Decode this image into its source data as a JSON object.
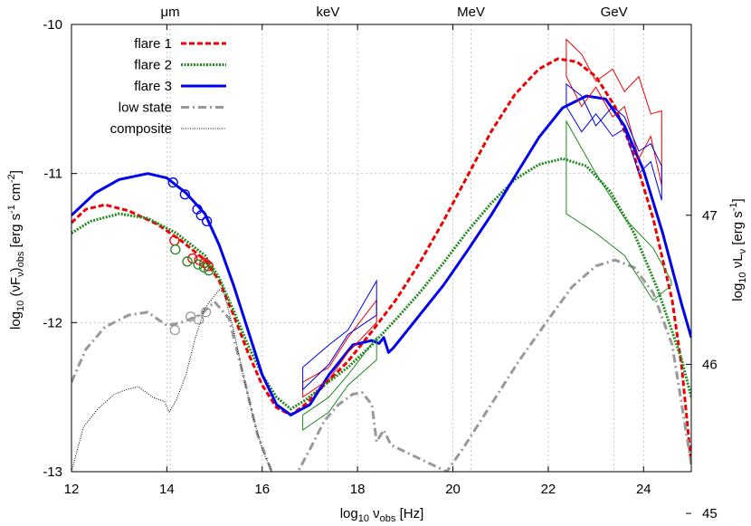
{
  "chart_data": {
    "type": "line",
    "xlabel_main": "log",
    "xlabel_sub": "10",
    "xlabel_nu": " ν",
    "xlabel_nu_sub": "obs",
    "xlabel_unit": " [Hz]",
    "ylabel_left_main": "log",
    "ylabel_left_sub": "10",
    "ylabel_left_mid": " (νF",
    "ylabel_left_sub2": "ν",
    "ylabel_left_mid2": ")",
    "ylabel_left_sub3": "obs",
    "ylabel_left_unit": " [erg s",
    "ylabel_left_sup1": "-1",
    "ylabel_left_unit2": " cm",
    "ylabel_left_sup2": "-2",
    "ylabel_left_end": "]",
    "ylabel_right_main": "log",
    "ylabel_right_sub": "10",
    "ylabel_right_mid": " νL",
    "ylabel_right_sub2": "ν",
    "ylabel_right_unit": " [erg s",
    "ylabel_right_sup": "-1",
    "ylabel_right_end": "]",
    "xlim": [
      12,
      25
    ],
    "ylim": [
      -13,
      -10
    ],
    "y2_offset": 58.28,
    "x_ticks": [
      "12",
      "14",
      "16",
      "18",
      "20",
      "22",
      "24"
    ],
    "x_tick_values": [
      12,
      14,
      16,
      18,
      20,
      22,
      24
    ],
    "y_ticks": [
      "-13",
      "-12",
      "-11",
      "-10"
    ],
    "y_tick_values": [
      -13,
      -12,
      -11,
      -10
    ],
    "y2_ticks": [
      "45",
      "46",
      "47"
    ],
    "y2_tick_values": [
      45,
      46,
      47
    ],
    "grid": true,
    "legend_position": "top-left",
    "bands": [
      {
        "label": "μm",
        "x": 14.07
      },
      {
        "label": "keV",
        "x": 17.38
      },
      {
        "label": "MeV",
        "x": 20.38
      },
      {
        "label": "GeV",
        "x": 23.38
      }
    ],
    "series": [
      {
        "name": "flare 1",
        "color": "#ee0000",
        "style": "dashed",
        "x": [
          12,
          12.3,
          12.7,
          13.2,
          13.8,
          14.3,
          14.8,
          15.1,
          15.4,
          15.7,
          16.0,
          16.3,
          16.6,
          16.9,
          17.3,
          17.8,
          18.3,
          18.8,
          19.3,
          19.8,
          20.3,
          20.8,
          21.3,
          21.8,
          22.2,
          22.6,
          23.0,
          23.4,
          23.8,
          24.2,
          24.6,
          24.8,
          25.0
        ],
        "y": [
          -11.33,
          -11.24,
          -11.21,
          -11.25,
          -11.34,
          -11.45,
          -11.58,
          -11.72,
          -11.95,
          -12.2,
          -12.42,
          -12.57,
          -12.62,
          -12.55,
          -12.42,
          -12.26,
          -12.06,
          -11.85,
          -11.6,
          -11.32,
          -11.02,
          -10.72,
          -10.47,
          -10.3,
          -10.23,
          -10.25,
          -10.35,
          -10.55,
          -10.88,
          -11.3,
          -11.85,
          -12.3,
          -12.95
        ]
      },
      {
        "name": "flare 2",
        "color": "#1f8a1f",
        "style": "dotted",
        "x": [
          12,
          12.4,
          13.0,
          13.6,
          14.2,
          14.8,
          15.1,
          15.4,
          15.7,
          16.0,
          16.3,
          16.6,
          16.9,
          17.3,
          17.8,
          18.3,
          18.8,
          19.3,
          19.8,
          20.3,
          20.8,
          21.3,
          21.8,
          22.3,
          22.8,
          23.3,
          23.8,
          24.3,
          24.8,
          25.0
        ],
        "y": [
          -11.4,
          -11.32,
          -11.27,
          -11.3,
          -11.4,
          -11.55,
          -11.7,
          -11.92,
          -12.15,
          -12.35,
          -12.5,
          -12.58,
          -12.52,
          -12.42,
          -12.3,
          -12.15,
          -11.98,
          -11.8,
          -11.6,
          -11.39,
          -11.2,
          -11.04,
          -10.94,
          -10.9,
          -10.95,
          -11.12,
          -11.4,
          -11.78,
          -12.25,
          -12.5
        ]
      },
      {
        "name": "flare 3",
        "color": "#0000ee",
        "style": "solid",
        "x": [
          12,
          12.5,
          13.0,
          13.6,
          14.0,
          14.4,
          14.8,
          15.1,
          15.4,
          15.7,
          16.0,
          16.3,
          16.6,
          17.0,
          17.4,
          17.9,
          18.3,
          18.45,
          18.55,
          18.65,
          18.75,
          19.3,
          19.8,
          20.3,
          20.8,
          21.3,
          21.8,
          22.3,
          22.8,
          23.2,
          23.6,
          24.0,
          24.4,
          24.8,
          25.0
        ],
        "y": [
          -11.28,
          -11.13,
          -11.04,
          -11.0,
          -11.03,
          -11.13,
          -11.27,
          -11.48,
          -11.75,
          -12.05,
          -12.35,
          -12.55,
          -12.62,
          -12.55,
          -12.35,
          -12.15,
          -12.12,
          -12.14,
          -12.1,
          -12.2,
          -12.17,
          -11.95,
          -11.75,
          -11.52,
          -11.28,
          -11.02,
          -10.76,
          -10.56,
          -10.48,
          -10.5,
          -10.68,
          -10.98,
          -11.4,
          -11.88,
          -12.1
        ]
      },
      {
        "name": "low state",
        "color": "#999999",
        "style": "dashdot",
        "x": [
          12,
          12.3,
          12.7,
          13.2,
          13.6,
          14.0,
          14.3,
          14.7,
          15.0,
          15.3,
          15.6,
          15.9,
          16.2,
          16.4,
          16.5,
          17.0,
          17.3,
          17.6,
          17.9,
          18.1,
          18.3,
          18.4,
          18.55,
          18.7,
          19.87,
          20.2,
          20.8,
          21.4,
          22.0,
          22.5,
          23.0,
          23.4,
          23.8,
          24.2,
          24.6,
          25.0
        ],
        "y": [
          -12.4,
          -12.18,
          -12.03,
          -11.95,
          -11.93,
          -12.02,
          -12.0,
          -11.95,
          -11.86,
          -11.97,
          -12.35,
          -12.75,
          -13.0,
          -13.1,
          -13.15,
          -12.85,
          -12.66,
          -12.55,
          -12.48,
          -12.47,
          -12.55,
          -12.8,
          -12.72,
          -12.82,
          -13.0,
          -12.85,
          -12.55,
          -12.25,
          -11.98,
          -11.76,
          -11.62,
          -11.58,
          -11.63,
          -11.8,
          -12.15,
          -12.95
        ]
      },
      {
        "name": "composite",
        "color": "#000000",
        "style": "finedot",
        "x": [
          12,
          12.25,
          12.55,
          12.9,
          13.15,
          13.4,
          13.7,
          13.95,
          14.05,
          14.2,
          14.4,
          14.6,
          14.8,
          15.0,
          15.1,
          15.2,
          15.4,
          15.6,
          15.8,
          16.0,
          16.2,
          16.5
        ],
        "y": [
          -13.0,
          -12.7,
          -12.58,
          -12.48,
          -12.45,
          -12.43,
          -12.5,
          -12.53,
          -12.6,
          -12.52,
          -12.35,
          -12.1,
          -11.9,
          -11.82,
          -11.78,
          -11.8,
          -12.05,
          -12.35,
          -12.62,
          -12.85,
          -13.0,
          -13.1
        ]
      }
    ],
    "data_points": [
      {
        "series": "flare 3",
        "color": "#0000ee",
        "x": [
          14.13,
          14.38,
          14.64,
          14.72,
          14.84
        ],
        "y": [
          -11.06,
          -11.14,
          -11.24,
          -11.28,
          -11.32
        ]
      },
      {
        "series": "flare 1",
        "color": "#ee0000",
        "x": [
          14.16,
          14.54,
          14.68,
          14.79,
          14.87
        ],
        "y": [
          -11.45,
          -11.57,
          -11.58,
          -11.6,
          -11.62
        ]
      },
      {
        "series": "flare 2",
        "color": "#1f8a1f",
        "x": [
          14.18,
          14.43,
          14.66,
          14.78,
          14.88
        ],
        "y": [
          -11.51,
          -11.59,
          -11.61,
          -11.63,
          -11.65
        ]
      },
      {
        "series": "low state",
        "color": "#999999",
        "x": [
          14.17,
          14.5,
          14.67,
          14.82
        ],
        "y": [
          -12.05,
          -11.96,
          -11.98,
          -11.93
        ]
      }
    ],
    "bowties": [
      {
        "series": "flare 1",
        "color": "#ee0000",
        "upper": {
          "x": [
            16.85,
            17.4,
            17.8,
            18.4
          ],
          "y": [
            -12.4,
            -12.3,
            -12.1,
            -11.85
          ]
        },
        "lower": {
          "x": [
            16.85,
            17.4,
            17.8,
            18.4
          ],
          "y": [
            -12.5,
            -12.38,
            -12.2,
            -12.0
          ]
        }
      },
      {
        "series": "flare 3",
        "color": "#0000ee",
        "upper": {
          "x": [
            16.85,
            17.4,
            17.8,
            18.4
          ],
          "y": [
            -12.3,
            -12.15,
            -12.05,
            -11.72
          ]
        },
        "lower": {
          "x": [
            16.85,
            17.4,
            17.8,
            18.4
          ],
          "y": [
            -12.45,
            -12.28,
            -12.08,
            -11.95
          ]
        }
      },
      {
        "series": "flare 2",
        "color": "#1f8a1f",
        "upper": {
          "x": [
            16.85,
            17.4,
            17.8,
            18.4
          ],
          "y": [
            -12.62,
            -12.5,
            -12.35,
            -12.1
          ]
        },
        "lower": {
          "x": [
            16.85,
            17.4,
            17.8,
            18.4
          ],
          "y": [
            -12.72,
            -12.6,
            -12.42,
            -12.25
          ]
        }
      },
      {
        "series": "flare 1",
        "color": "#ee0000",
        "upper": {
          "x": [
            22.38,
            22.7,
            23.0,
            23.35,
            23.6,
            23.9,
            24.15,
            24.38
          ],
          "y": [
            -10.1,
            -10.2,
            -10.38,
            -10.3,
            -10.45,
            -10.35,
            -10.6,
            -10.58
          ]
        },
        "lower": {
          "x": [
            22.38,
            22.7,
            23.0,
            23.35,
            23.6,
            23.9,
            24.15,
            24.38
          ],
          "y": [
            -10.35,
            -10.55,
            -10.42,
            -10.62,
            -10.55,
            -10.9,
            -10.75,
            -11.08
          ]
        }
      },
      {
        "series": "flare 3",
        "color": "#0000ee",
        "upper": {
          "x": [
            22.38,
            22.7,
            23.0,
            23.35,
            23.6,
            23.9,
            24.15,
            24.38
          ],
          "y": [
            -10.4,
            -10.48,
            -10.68,
            -10.55,
            -10.62,
            -10.85,
            -10.8,
            -10.95
          ]
        },
        "lower": {
          "x": [
            22.38,
            22.7,
            23.0,
            23.35,
            23.6,
            23.9,
            24.15,
            24.38
          ],
          "y": [
            -10.55,
            -10.72,
            -10.6,
            -10.75,
            -10.7,
            -11.0,
            -10.92,
            -11.18
          ]
        }
      },
      {
        "series": "flare 2",
        "color": "#1f8a1f",
        "upper": {
          "x": [
            22.38,
            23.0,
            23.6,
            24.2,
            24.58
          ],
          "y": [
            -10.65,
            -11.0,
            -11.3,
            -11.5,
            -11.72
          ]
        },
        "lower": {
          "x": [
            22.38,
            23.0,
            23.6,
            24.2,
            24.58
          ],
          "y": [
            -11.27,
            -11.4,
            -11.55,
            -11.85,
            -11.75
          ]
        }
      }
    ]
  }
}
